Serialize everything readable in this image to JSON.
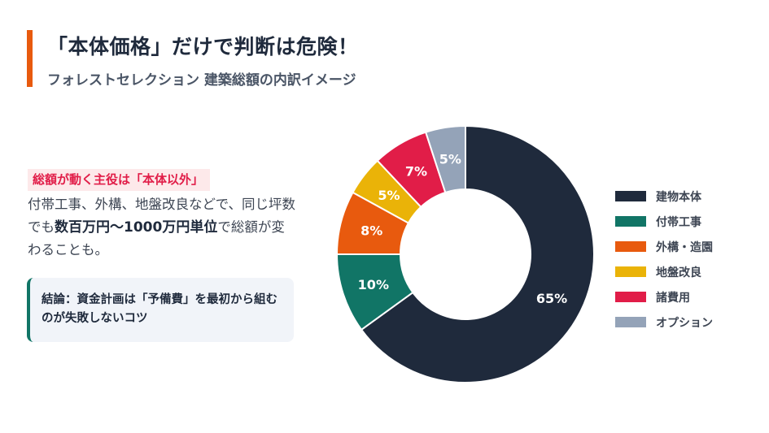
{
  "header": {
    "title": "「本体価格」だけで判断は危険！",
    "subtitle": "フォレストセレクション 建築総額の内訳イメージ",
    "accent_color": "#e85a0e"
  },
  "left_panel": {
    "highlight": "総額が動く主役は「本体以外」",
    "body_part1": "付帯工事、外構、地盤改良などで、同じ坪数でも",
    "body_bold": "数百万円〜1000万円単位",
    "body_part2": "で総額が変わることも。",
    "callout": "結論：資金計画は「予備費」を最初から組むのが失敗しないコツ"
  },
  "chart_data": {
    "type": "pie",
    "variant": "donut",
    "title": "フォレストセレクション 建築総額の内訳イメージ",
    "categories": [
      "建物本体",
      "付帯工事",
      "外構・造園",
      "地盤改良",
      "諸費用",
      "オプション"
    ],
    "values": [
      65,
      10,
      8,
      5,
      7,
      5
    ],
    "labels": [
      "65%",
      "10%",
      "8%",
      "5%",
      "7%",
      "5%"
    ],
    "colors": [
      "#1f2a3c",
      "#117566",
      "#e85a0e",
      "#eab308",
      "#e11d48",
      "#94a3b8"
    ],
    "start_angle": "12 o'clock, clockwise",
    "legend_position": "right"
  }
}
